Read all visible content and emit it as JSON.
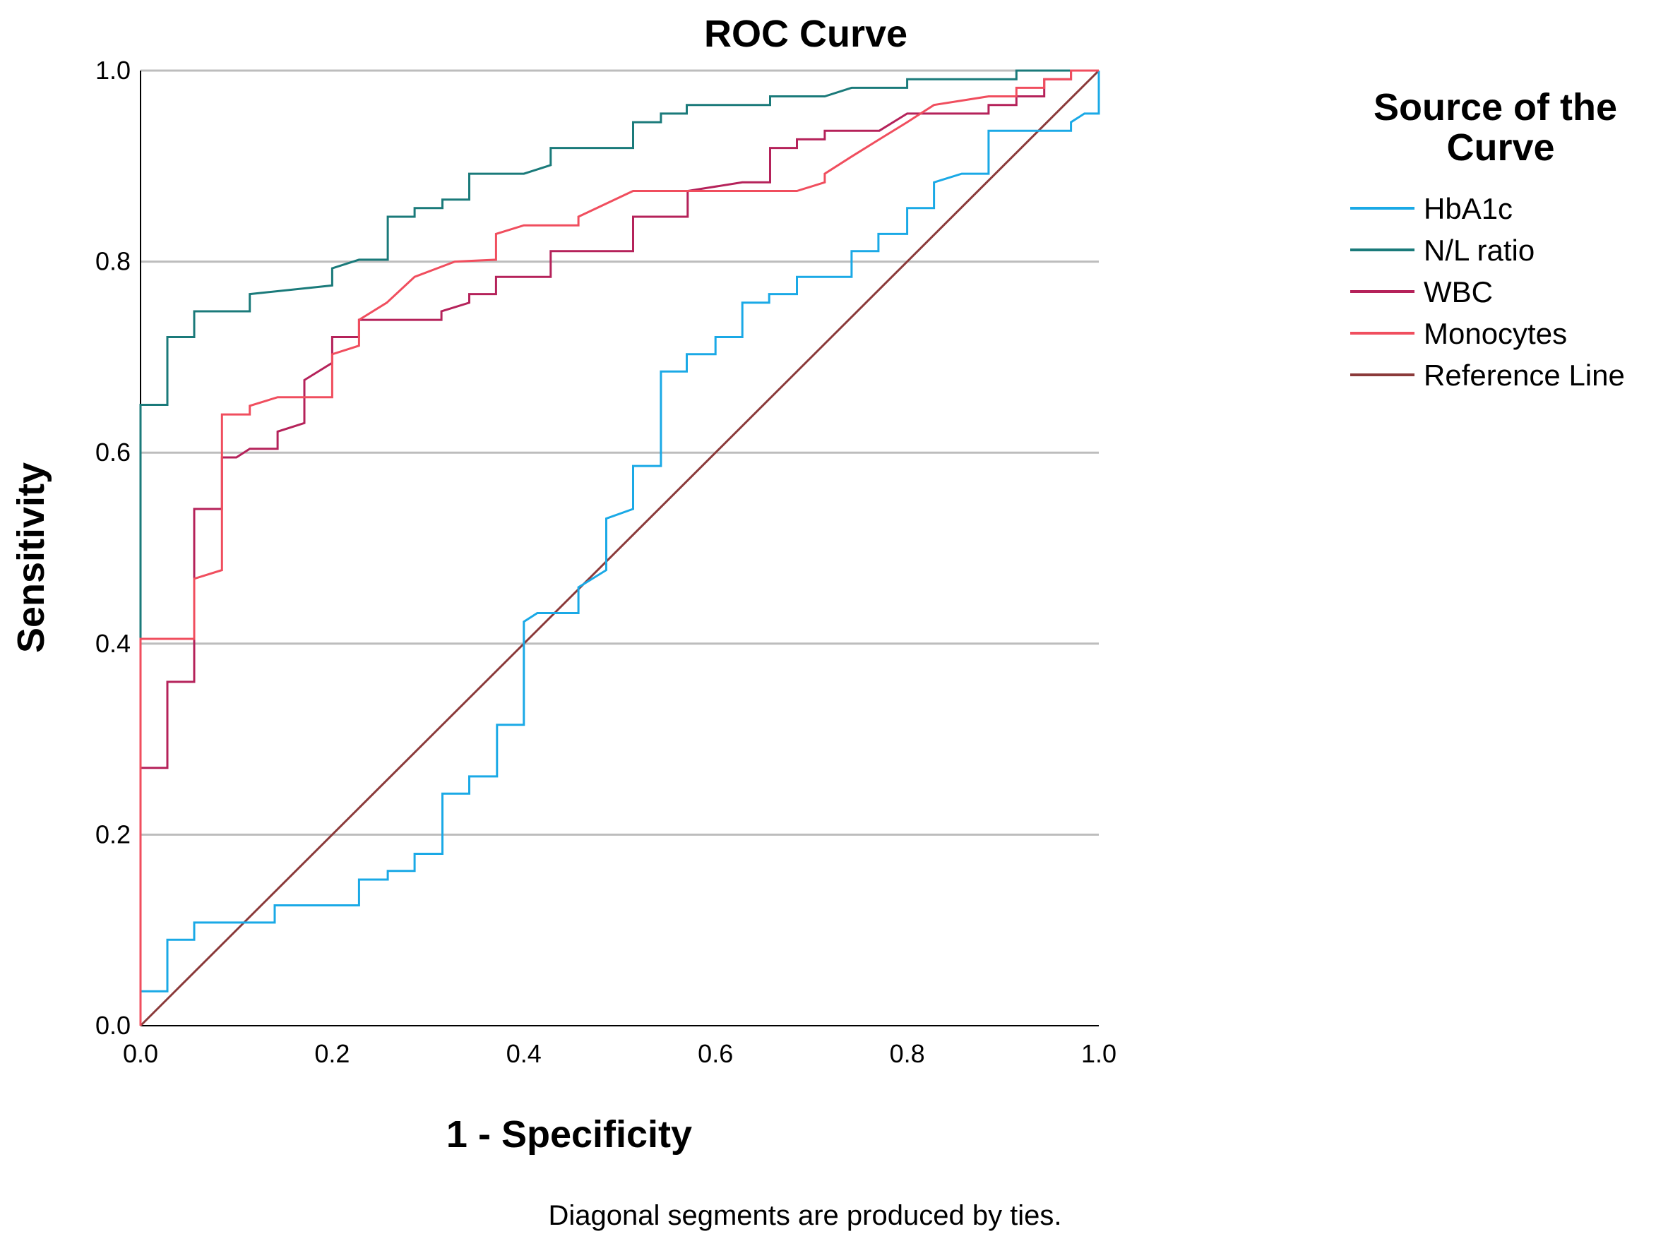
{
  "chart_data": {
    "type": "line",
    "title": "ROC Curve",
    "xlabel": "1 - Specificity",
    "ylabel": "Sensitivity",
    "xlim": [
      0,
      1
    ],
    "ylim": [
      0,
      1
    ],
    "x_ticks": [
      "0.0",
      "0.2",
      "0.4",
      "0.6",
      "0.8",
      "1.0"
    ],
    "y_ticks": [
      "0.0",
      "0.2",
      "0.4",
      "0.6",
      "0.8",
      "1.0"
    ],
    "grid": "horizontal",
    "legend_title": "Source of the Curve",
    "legend_position": "right",
    "footnote": "Diagonal segments are produced by ties.",
    "series": [
      {
        "name": "HbA1c",
        "color": "#1aa9e6",
        "points": [
          [
            0,
            0
          ],
          [
            0,
            0.036
          ],
          [
            0.028,
            0.036
          ],
          [
            0.028,
            0.09
          ],
          [
            0.056,
            0.09
          ],
          [
            0.056,
            0.108
          ],
          [
            0.14,
            0.108
          ],
          [
            0.14,
            0.126
          ],
          [
            0.228,
            0.126
          ],
          [
            0.228,
            0.153
          ],
          [
            0.258,
            0.153
          ],
          [
            0.258,
            0.162
          ],
          [
            0.286,
            0.162
          ],
          [
            0.286,
            0.18
          ],
          [
            0.315,
            0.18
          ],
          [
            0.315,
            0.243
          ],
          [
            0.343,
            0.243
          ],
          [
            0.343,
            0.261
          ],
          [
            0.372,
            0.261
          ],
          [
            0.372,
            0.315
          ],
          [
            0.4,
            0.315
          ],
          [
            0.4,
            0.423
          ],
          [
            0.414,
            0.432
          ],
          [
            0.457,
            0.432
          ],
          [
            0.457,
            0.459
          ],
          [
            0.486,
            0.477
          ],
          [
            0.486,
            0.531
          ],
          [
            0.514,
            0.541
          ],
          [
            0.514,
            0.586
          ],
          [
            0.543,
            0.586
          ],
          [
            0.543,
            0.685
          ],
          [
            0.57,
            0.685
          ],
          [
            0.57,
            0.703
          ],
          [
            0.6,
            0.703
          ],
          [
            0.6,
            0.721
          ],
          [
            0.628,
            0.721
          ],
          [
            0.628,
            0.757
          ],
          [
            0.656,
            0.757
          ],
          [
            0.656,
            0.766
          ],
          [
            0.685,
            0.766
          ],
          [
            0.685,
            0.784
          ],
          [
            0.742,
            0.784
          ],
          [
            0.742,
            0.811
          ],
          [
            0.77,
            0.811
          ],
          [
            0.77,
            0.829
          ],
          [
            0.8,
            0.829
          ],
          [
            0.8,
            0.856
          ],
          [
            0.828,
            0.856
          ],
          [
            0.828,
            0.883
          ],
          [
            0.857,
            0.892
          ],
          [
            0.885,
            0.892
          ],
          [
            0.885,
            0.937
          ],
          [
            0.971,
            0.937
          ],
          [
            0.971,
            0.946
          ],
          [
            0.985,
            0.955
          ],
          [
            1.0,
            0.955
          ],
          [
            1.0,
            1.0
          ]
        ]
      },
      {
        "name": "N/L ratio",
        "color": "#1a7a7a",
        "points": [
          [
            0,
            0
          ],
          [
            0,
            0.65
          ],
          [
            0.028,
            0.65
          ],
          [
            0.028,
            0.721
          ],
          [
            0.056,
            0.721
          ],
          [
            0.056,
            0.748
          ],
          [
            0.114,
            0.748
          ],
          [
            0.114,
            0.766
          ],
          [
            0.2,
            0.775
          ],
          [
            0.2,
            0.793
          ],
          [
            0.228,
            0.802
          ],
          [
            0.258,
            0.802
          ],
          [
            0.258,
            0.847
          ],
          [
            0.286,
            0.847
          ],
          [
            0.286,
            0.856
          ],
          [
            0.315,
            0.856
          ],
          [
            0.315,
            0.865
          ],
          [
            0.343,
            0.865
          ],
          [
            0.343,
            0.892
          ],
          [
            0.4,
            0.892
          ],
          [
            0.428,
            0.901
          ],
          [
            0.428,
            0.919
          ],
          [
            0.514,
            0.919
          ],
          [
            0.514,
            0.946
          ],
          [
            0.543,
            0.946
          ],
          [
            0.543,
            0.955
          ],
          [
            0.57,
            0.955
          ],
          [
            0.57,
            0.964
          ],
          [
            0.657,
            0.964
          ],
          [
            0.657,
            0.973
          ],
          [
            0.714,
            0.973
          ],
          [
            0.742,
            0.982
          ],
          [
            0.8,
            0.982
          ],
          [
            0.8,
            0.991
          ],
          [
            0.914,
            0.991
          ],
          [
            0.914,
            1.0
          ],
          [
            1.0,
            1.0
          ]
        ]
      },
      {
        "name": "WBC",
        "color": "#b5225a",
        "points": [
          [
            0,
            0
          ],
          [
            0,
            0.27
          ],
          [
            0.028,
            0.27
          ],
          [
            0.028,
            0.36
          ],
          [
            0.056,
            0.36
          ],
          [
            0.056,
            0.541
          ],
          [
            0.085,
            0.541
          ],
          [
            0.085,
            0.595
          ],
          [
            0.1,
            0.595
          ],
          [
            0.114,
            0.604
          ],
          [
            0.143,
            0.604
          ],
          [
            0.143,
            0.622
          ],
          [
            0.171,
            0.631
          ],
          [
            0.171,
            0.676
          ],
          [
            0.2,
            0.694
          ],
          [
            0.2,
            0.721
          ],
          [
            0.228,
            0.721
          ],
          [
            0.228,
            0.739
          ],
          [
            0.314,
            0.739
          ],
          [
            0.314,
            0.748
          ],
          [
            0.343,
            0.757
          ],
          [
            0.343,
            0.766
          ],
          [
            0.371,
            0.766
          ],
          [
            0.371,
            0.784
          ],
          [
            0.428,
            0.784
          ],
          [
            0.428,
            0.811
          ],
          [
            0.514,
            0.811
          ],
          [
            0.514,
            0.847
          ],
          [
            0.571,
            0.847
          ],
          [
            0.571,
            0.874
          ],
          [
            0.628,
            0.883
          ],
          [
            0.657,
            0.883
          ],
          [
            0.657,
            0.919
          ],
          [
            0.685,
            0.919
          ],
          [
            0.685,
            0.928
          ],
          [
            0.714,
            0.928
          ],
          [
            0.714,
            0.937
          ],
          [
            0.771,
            0.937
          ],
          [
            0.8,
            0.955
          ],
          [
            0.885,
            0.955
          ],
          [
            0.885,
            0.964
          ],
          [
            0.914,
            0.964
          ],
          [
            0.914,
            0.973
          ],
          [
            0.943,
            0.973
          ],
          [
            0.943,
            0.991
          ],
          [
            0.971,
            0.991
          ],
          [
            0.971,
            1.0
          ],
          [
            1.0,
            1.0
          ]
        ]
      },
      {
        "name": "Monocytes",
        "color": "#f04e5e",
        "points": [
          [
            0,
            0
          ],
          [
            0,
            0.405
          ],
          [
            0.056,
            0.405
          ],
          [
            0.056,
            0.468
          ],
          [
            0.085,
            0.477
          ],
          [
            0.085,
            0.64
          ],
          [
            0.114,
            0.64
          ],
          [
            0.114,
            0.649
          ],
          [
            0.143,
            0.658
          ],
          [
            0.2,
            0.658
          ],
          [
            0.2,
            0.703
          ],
          [
            0.228,
            0.712
          ],
          [
            0.228,
            0.739
          ],
          [
            0.257,
            0.757
          ],
          [
            0.286,
            0.784
          ],
          [
            0.328,
            0.8
          ],
          [
            0.371,
            0.802
          ],
          [
            0.371,
            0.829
          ],
          [
            0.4,
            0.838
          ],
          [
            0.457,
            0.838
          ],
          [
            0.457,
            0.847
          ],
          [
            0.514,
            0.874
          ],
          [
            0.685,
            0.874
          ],
          [
            0.714,
            0.883
          ],
          [
            0.714,
            0.892
          ],
          [
            0.742,
            0.91
          ],
          [
            0.771,
            0.928
          ],
          [
            0.8,
            0.946
          ],
          [
            0.814,
            0.955
          ],
          [
            0.828,
            0.964
          ],
          [
            0.885,
            0.973
          ],
          [
            0.914,
            0.973
          ],
          [
            0.914,
            0.982
          ],
          [
            0.943,
            0.982
          ],
          [
            0.943,
            0.991
          ],
          [
            0.971,
            0.991
          ],
          [
            0.971,
            1.0
          ],
          [
            1.0,
            1.0
          ]
        ]
      },
      {
        "name": "Reference Line",
        "color": "#8b3a3a",
        "points": [
          [
            0,
            0
          ],
          [
            1,
            1
          ]
        ]
      }
    ]
  }
}
